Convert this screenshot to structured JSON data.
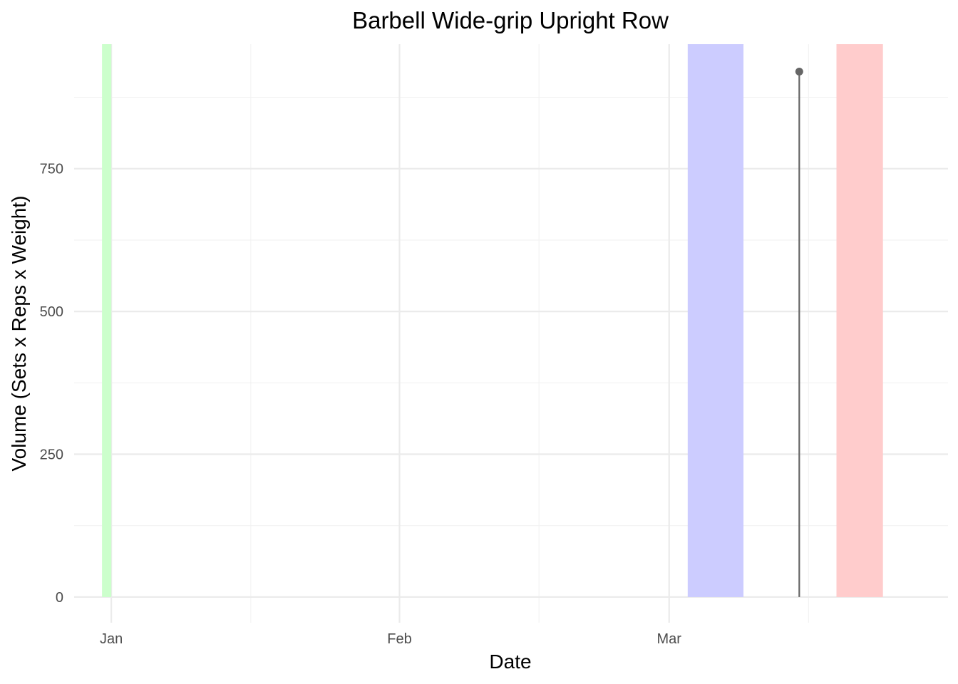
{
  "chart_data": {
    "type": "line",
    "title": "Barbell Wide-grip Upright Row",
    "xlabel": "Date",
    "ylabel": "Volume (Sets x Reps x Weight)",
    "xlim": [
      "2023-12-28",
      "2024-03-31"
    ],
    "ylim": [
      -45,
      968
    ],
    "x_ticks": [
      {
        "date": "2024-01-01",
        "label": "Jan"
      },
      {
        "date": "2024-02-01",
        "label": "Feb"
      },
      {
        "date": "2024-03-01",
        "label": "Mar"
      }
    ],
    "x_minor_ticks": [
      "2024-01-16",
      "2024-02-16",
      "2024-03-16"
    ],
    "y_ticks": [
      0,
      250,
      500,
      750
    ],
    "y_minor_ticks": [
      125,
      375,
      625,
      875
    ],
    "grid": true,
    "legend": "none",
    "shaded_periods": [
      {
        "start": "2023-12-31",
        "end": "2024-01-01",
        "color": "#ccffcc"
      },
      {
        "start": "2024-03-03",
        "end": "2024-03-09",
        "color": "#ccccff"
      },
      {
        "start": "2024-03-19",
        "end": "2024-03-24",
        "color": "#ffcccc"
      }
    ],
    "series": [
      {
        "x": [
          "2024-03-15"
        ],
        "values": [
          920
        ],
        "style": "lollipop",
        "color": "#666666"
      }
    ]
  }
}
